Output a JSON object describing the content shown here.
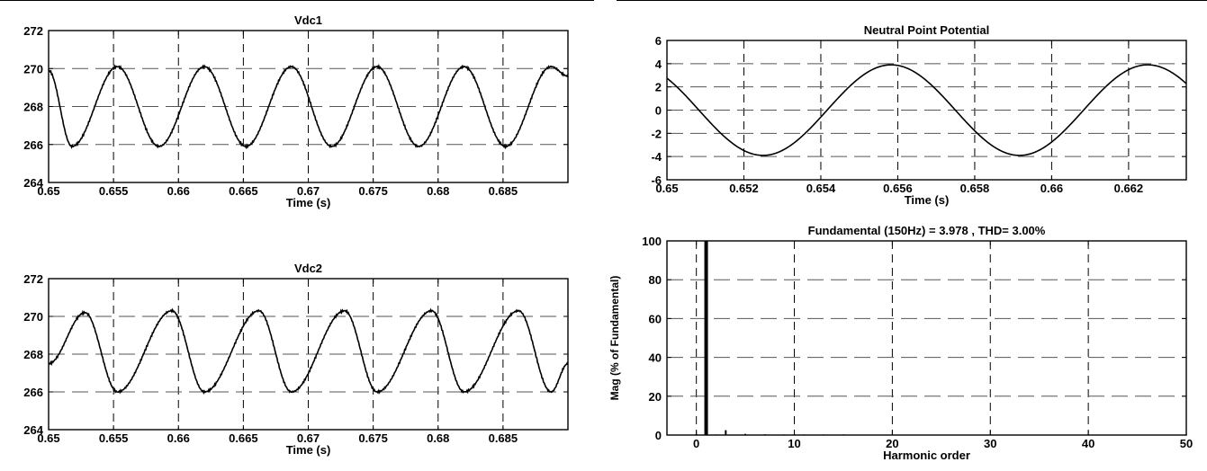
{
  "chart_data": [
    {
      "type": "line",
      "title": "Vdc1",
      "xlabel": "Time (s)",
      "ylabel": "",
      "xlim": [
        0.65,
        0.69
      ],
      "ylim": [
        264,
        272
      ],
      "xticks": [
        0.65,
        0.655,
        0.66,
        0.665,
        0.67,
        0.675,
        0.68,
        0.685
      ],
      "xtick_labels": [
        "0.65",
        "0.655",
        "0.66",
        "0.665",
        "0.67",
        "0.675",
        "0.68",
        "0.685"
      ],
      "yticks": [
        264,
        266,
        268,
        270,
        272
      ],
      "ytick_labels": [
        "264",
        "266",
        "268",
        "270",
        "272"
      ],
      "grid": true,
      "series": [
        {
          "name": "",
          "x": [
            0.65,
            0.6518,
            0.6553,
            0.6585,
            0.662,
            0.6652,
            0.6687,
            0.6718,
            0.6753,
            0.6785,
            0.682,
            0.6852,
            0.6887,
            0.69
          ],
          "y": [
            269.9,
            265.9,
            270.1,
            265.9,
            270.1,
            265.9,
            270.1,
            265.9,
            270.1,
            265.9,
            270.1,
            265.9,
            270.1,
            269.6
          ]
        }
      ]
    },
    {
      "type": "line",
      "title": "Vdc2",
      "xlabel": "Time (s)",
      "ylabel": "",
      "xlim": [
        0.65,
        0.69
      ],
      "ylim": [
        264,
        272
      ],
      "xticks": [
        0.65,
        0.655,
        0.66,
        0.665,
        0.67,
        0.675,
        0.68,
        0.685
      ],
      "xtick_labels": [
        "0.65",
        "0.655",
        "0.66",
        "0.665",
        "0.67",
        "0.675",
        "0.68",
        "0.685"
      ],
      "yticks": [
        264,
        266,
        268,
        270,
        272
      ],
      "ytick_labels": [
        "264",
        "266",
        "268",
        "270",
        "272"
      ],
      "grid": true,
      "series": [
        {
          "name": "",
          "x": [
            0.65,
            0.6528,
            0.6553,
            0.6595,
            0.662,
            0.6662,
            0.6687,
            0.6728,
            0.6753,
            0.6795,
            0.682,
            0.6862,
            0.6887,
            0.69
          ],
          "y": [
            267.5,
            270.2,
            266.0,
            270.3,
            266.0,
            270.3,
            266.0,
            270.3,
            266.0,
            270.3,
            266.0,
            270.3,
            266.0,
            267.5
          ]
        }
      ]
    },
    {
      "type": "line",
      "title": "Neutral Point Potential",
      "xlabel": "Time (s)",
      "ylabel": "",
      "xlim": [
        0.65,
        0.6635
      ],
      "ylim": [
        -6,
        6
      ],
      "xticks": [
        0.65,
        0.652,
        0.654,
        0.656,
        0.658,
        0.66,
        0.662
      ],
      "xtick_labels": [
        "0.65",
        "0.652",
        "0.654",
        "0.656",
        "0.658",
        "0.66",
        "0.662"
      ],
      "yticks": [
        -6,
        -4,
        -2,
        0,
        2,
        4,
        6
      ],
      "ytick_labels": [
        "-6",
        "-4",
        "-2",
        "0",
        "2",
        "4",
        "6"
      ],
      "grid": true,
      "series": [
        {
          "name": "",
          "amplitude": 3.9,
          "frequency_hz": 150,
          "peak_time_s": 0.65583,
          "x_start": 0.65,
          "x_end": 0.6635
        }
      ]
    },
    {
      "type": "bar",
      "title": "Fundamental (150Hz) = 3.978 , THD= 3.00%",
      "xlabel": "Harmonic order",
      "ylabel": "Mag (% of Fundamental)",
      "xlim": [
        -3,
        50
      ],
      "ylim": [
        0,
        100
      ],
      "xticks": [
        0,
        10,
        20,
        30,
        40,
        50
      ],
      "xtick_labels": [
        "0",
        "10",
        "20",
        "30",
        "40",
        "50"
      ],
      "yticks": [
        0,
        20,
        40,
        60,
        80,
        100
      ],
      "ytick_labels": [
        "0",
        "20",
        "40",
        "60",
        "80",
        "100"
      ],
      "grid": true,
      "x": [
        0,
        1,
        2,
        3,
        4,
        5,
        6,
        7,
        8,
        9,
        10,
        11,
        12,
        13,
        14,
        15,
        16,
        17,
        18,
        19,
        20,
        21,
        22,
        23,
        24,
        25,
        26,
        27,
        28,
        29,
        30,
        31,
        32,
        33,
        34,
        35,
        36,
        37,
        38,
        39,
        40,
        41,
        42,
        43,
        44,
        45,
        46,
        47,
        48,
        49,
        50
      ],
      "values": [
        0.5,
        100,
        0.3,
        2.5,
        0.2,
        0.6,
        0.2,
        0.4,
        0.2,
        0.3,
        0.4,
        0.3,
        0.2,
        0.3,
        0.2,
        0.3,
        0.2,
        0.2,
        0.2,
        0.2,
        0.2,
        0.2,
        0.2,
        0.2,
        0.2,
        0.2,
        0.2,
        0.2,
        0.2,
        0.2,
        0.2,
        0.2,
        0.2,
        0.2,
        0.2,
        0.2,
        0.2,
        0.2,
        0.2,
        0.2,
        0.2,
        0.2,
        0.2,
        0.2,
        0.2,
        0.2,
        0.2,
        0.2,
        0.2,
        0.2,
        0.2
      ]
    }
  ]
}
